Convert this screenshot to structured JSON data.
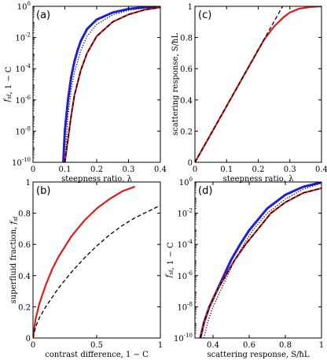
{
  "chart_data": [
    {
      "id": "a",
      "panel_label": "(a)",
      "type": "line",
      "xscale": "linear",
      "yscale": "log",
      "xlim": [
        0,
        0.4
      ],
      "ylim": [
        1e-10,
        1
      ],
      "xticks": [
        0,
        0.1,
        0.2,
        0.3,
        0.4
      ],
      "xtick_labels": [
        "0",
        "0.1",
        "0.2",
        "0.3",
        "0.4"
      ],
      "yticks": [
        1e-10,
        1e-08,
        1e-06,
        0.0001,
        0.01,
        1
      ],
      "ytick_labels": [
        {
          "base": "10",
          "exp": "-10"
        },
        {
          "base": "10",
          "exp": "-8"
        },
        {
          "base": "10",
          "exp": "-6"
        },
        {
          "base": "10",
          "exp": "-4"
        },
        {
          "base": "10",
          "exp": "-2"
        },
        {
          "base": "10",
          "exp": "0"
        }
      ],
      "xlabel": "steepness ratio, λ",
      "ylabel": "f_sf, 1 − C",
      "series": [
        {
          "color": "#1f1fd6",
          "dash": "solid",
          "x": [
            0.095,
            0.1,
            0.11,
            0.12,
            0.13,
            0.14,
            0.15,
            0.17,
            0.2,
            0.25,
            0.3,
            0.35,
            0.4
          ],
          "y": [
            1e-10,
            1e-08,
            1e-06,
            3e-05,
            0.0003,
            0.0015,
            0.006,
            0.035,
            0.14,
            0.4,
            0.68,
            0.87,
            0.95
          ]
        },
        {
          "color": "#000000",
          "dash": "dotted",
          "x": [
            0.1,
            0.11,
            0.12,
            0.13,
            0.15,
            0.17,
            0.2,
            0.25,
            0.3,
            0.35,
            0.4
          ],
          "y": [
            1e-10,
            1e-07,
            5e-06,
            6e-05,
            0.0015,
            0.012,
            0.07,
            0.28,
            0.55,
            0.78,
            0.9
          ]
        },
        {
          "color": "#e31a1a",
          "dash": "solid",
          "x": [
            0.1,
            0.11,
            0.12,
            0.13,
            0.15,
            0.17,
            0.2,
            0.25,
            0.3,
            0.35,
            0.4
          ],
          "y": [
            1e-10,
            3e-09,
            1e-07,
            2e-06,
            8e-05,
            0.001,
            0.012,
            0.1,
            0.3,
            0.6,
            0.85
          ]
        },
        {
          "color": "#000000",
          "dash": "dashed",
          "x": [
            0.1,
            0.11,
            0.12,
            0.13,
            0.15,
            0.17,
            0.2,
            0.25,
            0.3,
            0.35,
            0.4
          ],
          "y": [
            1e-10,
            3e-09,
            1e-07,
            2e-06,
            8e-05,
            0.001,
            0.012,
            0.1,
            0.3,
            0.6,
            0.85
          ]
        }
      ]
    },
    {
      "id": "b",
      "panel_label": "(b)",
      "type": "line",
      "xscale": "linear",
      "yscale": "linear",
      "xlim": [
        0,
        1
      ],
      "ylim": [
        0,
        1
      ],
      "xticks": [
        0,
        0.5,
        1
      ],
      "xtick_labels": [
        "0",
        "0.5",
        "1"
      ],
      "yticks": [
        0,
        0.2,
        0.4,
        0.6,
        0.8,
        1
      ],
      "ytick_labels": [
        "0",
        "0.2",
        "0.4",
        "0.6",
        "0.8",
        "1"
      ],
      "xlabel": "contrast difference, 1 − C",
      "ylabel": "superfluid fraction, f_sf",
      "series": [
        {
          "color": "#e31a1a",
          "dash": "solid",
          "x": [
            0,
            0.02,
            0.05,
            0.1,
            0.15,
            0.2,
            0.3,
            0.4,
            0.5,
            0.6,
            0.7,
            0.8
          ],
          "y": [
            0,
            0.12,
            0.22,
            0.34,
            0.44,
            0.52,
            0.65,
            0.75,
            0.83,
            0.89,
            0.94,
            0.97
          ]
        },
        {
          "color": "#000000",
          "dash": "dashed",
          "x": [
            0,
            0.02,
            0.05,
            0.1,
            0.2,
            0.3,
            0.4,
            0.5,
            0.6,
            0.7,
            0.8,
            0.9,
            1
          ],
          "y": [
            0,
            0.07,
            0.13,
            0.2,
            0.32,
            0.42,
            0.51,
            0.59,
            0.66,
            0.72,
            0.77,
            0.81,
            0.85
          ]
        }
      ]
    },
    {
      "id": "c",
      "panel_label": "(c)",
      "type": "line",
      "xscale": "linear",
      "yscale": "linear",
      "xlim": [
        0,
        0.4
      ],
      "ylim": [
        0,
        1
      ],
      "xticks": [
        0,
        0.1,
        0.2,
        0.3,
        0.4
      ],
      "xtick_labels": [
        "0",
        "0.1",
        "0.2",
        "0.3",
        "0.4"
      ],
      "yticks": [
        0,
        0.2,
        0.4,
        0.6,
        0.8,
        1
      ],
      "ytick_labels": [
        "0",
        "0.2",
        "0.4",
        "0.6",
        "0.8",
        "1"
      ],
      "xlabel": "steepness ratio, λ",
      "ylabel": "scattering response, S/ħL",
      "series": [
        {
          "color": "#e31a1a",
          "dash": "solid",
          "x": [
            0,
            0.05,
            0.1,
            0.15,
            0.2,
            0.22,
            0.25,
            0.28,
            0.3,
            0.33,
            0.36,
            0.4
          ],
          "y": [
            0,
            0.18,
            0.36,
            0.54,
            0.72,
            0.79,
            0.87,
            0.93,
            0.96,
            0.985,
            0.995,
            1
          ]
        },
        {
          "color": "#000000",
          "dash": "dashed",
          "x": [
            0,
            0.28
          ],
          "y": [
            0,
            1.01
          ]
        }
      ]
    },
    {
      "id": "d",
      "panel_label": "(d)",
      "type": "line",
      "xscale": "linear",
      "yscale": "log",
      "xlim": [
        0.3,
        1
      ],
      "ylim": [
        1e-10,
        1
      ],
      "xticks": [
        0.4,
        0.6,
        0.8,
        1
      ],
      "xtick_labels": [
        "0.4",
        "0.6",
        "0.8",
        "1"
      ],
      "yticks": [
        1e-10,
        1e-08,
        1e-06,
        0.0001,
        0.01,
        1
      ],
      "ytick_labels": [
        {
          "base": "10",
          "exp": "-10"
        },
        {
          "base": "10",
          "exp": "-8"
        },
        {
          "base": "10",
          "exp": "-6"
        },
        {
          "base": "10",
          "exp": "-4"
        },
        {
          "base": "10",
          "exp": "-2"
        },
        {
          "base": "10",
          "exp": "0"
        }
      ],
      "xlabel": "scattering response, S/ħL",
      "ylabel": "f_sf, 1 − C",
      "series": [
        {
          "color": "#1f1fd6",
          "dash": "solid",
          "x": [
            0.33,
            0.35,
            0.38,
            0.42,
            0.46,
            0.5,
            0.55,
            0.6,
            0.7,
            0.8,
            0.9,
            1.0
          ],
          "y": [
            1e-10,
            1e-09,
            1e-08,
            1e-07,
            1e-06,
            1e-05,
            0.0001,
            0.0008,
            0.02,
            0.15,
            0.5,
            0.95
          ]
        },
        {
          "color": "#000000",
          "dash": "dotted",
          "x": [
            0.35,
            0.37,
            0.4,
            0.44,
            0.48,
            0.52,
            0.57,
            0.62,
            0.7,
            0.8,
            0.9,
            1.0
          ],
          "y": [
            1e-10,
            1e-09,
            1e-08,
            1e-07,
            1e-06,
            1e-05,
            0.0001,
            0.0008,
            0.01,
            0.08,
            0.35,
            0.85
          ]
        },
        {
          "color": "#e31a1a",
          "dash": "solid",
          "x": [
            0.33,
            0.35,
            0.38,
            0.42,
            0.47,
            0.52,
            0.58,
            0.65,
            0.72,
            0.8,
            0.9,
            1.0
          ],
          "y": [
            1e-10,
            1e-09,
            1e-08,
            1e-07,
            1e-06,
            1e-05,
            0.0001,
            0.001,
            0.01,
            0.05,
            0.2,
            0.4
          ]
        },
        {
          "color": "#000000",
          "dash": "dashed",
          "x": [
            0.33,
            0.35,
            0.38,
            0.42,
            0.47,
            0.52,
            0.58,
            0.65,
            0.72,
            0.8,
            0.9,
            1.0
          ],
          "y": [
            1e-10,
            1e-09,
            1e-08,
            1e-07,
            1e-06,
            1e-05,
            0.0001,
            0.001,
            0.01,
            0.05,
            0.2,
            0.4
          ]
        }
      ]
    }
  ]
}
